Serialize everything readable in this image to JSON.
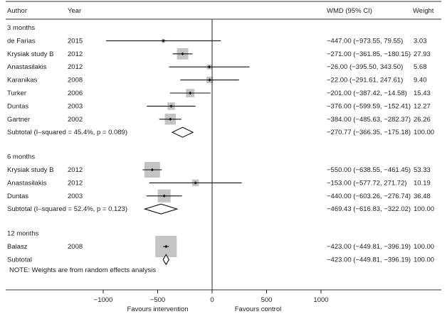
{
  "header": {
    "author": "Author",
    "year": "Year",
    "wmd": "WMD (95% CI)",
    "weight": "Weight"
  },
  "note": "NOTE: Weights are from random effects analysis",
  "chart_data": {
    "type": "forest",
    "xlim": [
      -1000,
      1000
    ],
    "ticks": [
      -1000,
      -500,
      0,
      500,
      1000
    ],
    "tick_labels": [
      "−1000",
      "−500",
      "0",
      "500",
      "1000"
    ],
    "xlabel_left": "Favours intervention",
    "xlabel_right": "Favours control",
    "groups": [
      {
        "label": "3 months",
        "studies": [
          {
            "author": "de Farias",
            "year": "2015",
            "est": -447.0,
            "lo": -973.55,
            "hi": 79.55,
            "weight": 3.03,
            "text": "−447.00 (−973.55, 79.55)",
            "weight_text": "3.03"
          },
          {
            "author": "Krysiak study B",
            "year": "2012",
            "est": -271.0,
            "lo": -361.85,
            "hi": -180.15,
            "weight": 27.93,
            "text": "−271.00 (−361.85, −180.15)",
            "weight_text": "27.93"
          },
          {
            "author": "Anastasilakis",
            "year": "2012",
            "est": -26.0,
            "lo": -395.5,
            "hi": 343.5,
            "weight": 5.68,
            "text": "−26.00 (−395.50, 343.50)",
            "weight_text": "5.68"
          },
          {
            "author": "Karanikas",
            "year": "2008",
            "est": -22.0,
            "lo": -291.61,
            "hi": 247.61,
            "weight": 9.4,
            "text": "−22.00 (−291.61, 247.61)",
            "weight_text": "9.40"
          },
          {
            "author": "Turker",
            "year": "2006",
            "est": -201.0,
            "lo": -387.42,
            "hi": -14.58,
            "weight": 15.43,
            "text": "−201.00 (−387.42, −14.58)",
            "weight_text": "15.43"
          },
          {
            "author": "Duntas",
            "year": "2003",
            "est": -376.0,
            "lo": -599.59,
            "hi": -152.41,
            "weight": 12.27,
            "text": "−376.00 (−599.59, −152.41)",
            "weight_text": "12.27"
          },
          {
            "author": "Gartner",
            "year": "2002",
            "est": -384.0,
            "lo": -485.63,
            "hi": -282.37,
            "weight": 26.26,
            "text": "−384.00 (−485.63, −282.37)",
            "weight_text": "26.26"
          }
        ],
        "subtotal": {
          "label": "Subtotal  (I–squared = 45.4%, p = 0.089)",
          "est": -270.77,
          "lo": -366.35,
          "hi": -175.18,
          "text": "−270.77 (−366.35, −175.18)",
          "weight_text": "100.00"
        }
      },
      {
        "label": "6 months",
        "studies": [
          {
            "author": "Krysiak study B",
            "year": "2012",
            "est": -550.0,
            "lo": -638.55,
            "hi": -461.45,
            "weight": 53.33,
            "text": "−550.00 (−638.55, −461.45)",
            "weight_text": "53.33"
          },
          {
            "author": "Anastasilakis",
            "year": "2012",
            "est": -153.0,
            "lo": -577.72,
            "hi": 271.72,
            "weight": 10.19,
            "text": "−153.00 (−577.72, 271.72)",
            "weight_text": "10.19"
          },
          {
            "author": "Duntas",
            "year": "2003",
            "est": -440.0,
            "lo": -603.26,
            "hi": -276.74,
            "weight": 36.48,
            "text": "−440.00 (−603.26, −276.74)",
            "weight_text": "36.48"
          }
        ],
        "subtotal": {
          "label": "Subtotal  (I–squared = 52.4%, p = 0.123)",
          "est": -469.43,
          "lo": -616.83,
          "hi": -322.02,
          "text": "−469.43 (−616.83, −322.02)",
          "weight_text": "100.00"
        }
      },
      {
        "label": "12 months",
        "studies": [
          {
            "author": "Balasz",
            "year": "2008",
            "est": -423.0,
            "lo": -449.81,
            "hi": -396.19,
            "weight": 100.0,
            "text": "−423.00 (−449.81, −396.19)",
            "weight_text": "100.00"
          }
        ],
        "subtotal": {
          "label": "Subtotal",
          "est": -423.0,
          "lo": -449.81,
          "hi": -396.19,
          "text": "−423.00 (−449.81, −396.19)",
          "weight_text": "100.00"
        }
      }
    ]
  }
}
